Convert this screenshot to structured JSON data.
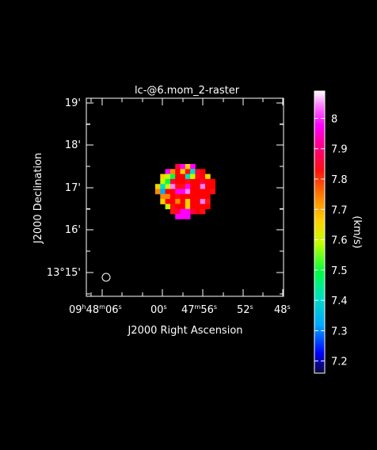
{
  "chart_data": {
    "type": "heatmap",
    "title": "lc-@6.mom_2-raster",
    "xlabel": "J2000 Right Ascension",
    "ylabel": "J2000 Declination",
    "x_ticks": [
      {
        "main": "09",
        "sup1": "h",
        "mid": "48",
        "sup2": "m",
        "end": "06",
        "sup3": "s"
      },
      {
        "main": "00",
        "sup1": "s",
        "mid": "",
        "sup2": "",
        "end": "",
        "sup3": ""
      },
      {
        "main": "47",
        "sup1": "m",
        "mid": "56",
        "sup2": "s",
        "end": "",
        "sup3": ""
      },
      {
        "main": "52",
        "sup1": "s",
        "mid": "",
        "sup2": "",
        "end": "",
        "sup3": ""
      },
      {
        "main": "48",
        "sup1": "s",
        "mid": "",
        "sup2": "",
        "end": "",
        "sup3": ""
      }
    ],
    "y_ticks": [
      "19'",
      "18'",
      "17'",
      "16'",
      "13°15'"
    ],
    "colorbar": {
      "label": "(km/s)",
      "vmin": 7.16,
      "vmax": 8.09,
      "ticks": [
        "7.2",
        "7.3",
        "7.4",
        "7.5",
        "7.6",
        "7.7",
        "7.8",
        "7.9",
        "8"
      ]
    },
    "grid": false,
    "beam": "circle"
  }
}
